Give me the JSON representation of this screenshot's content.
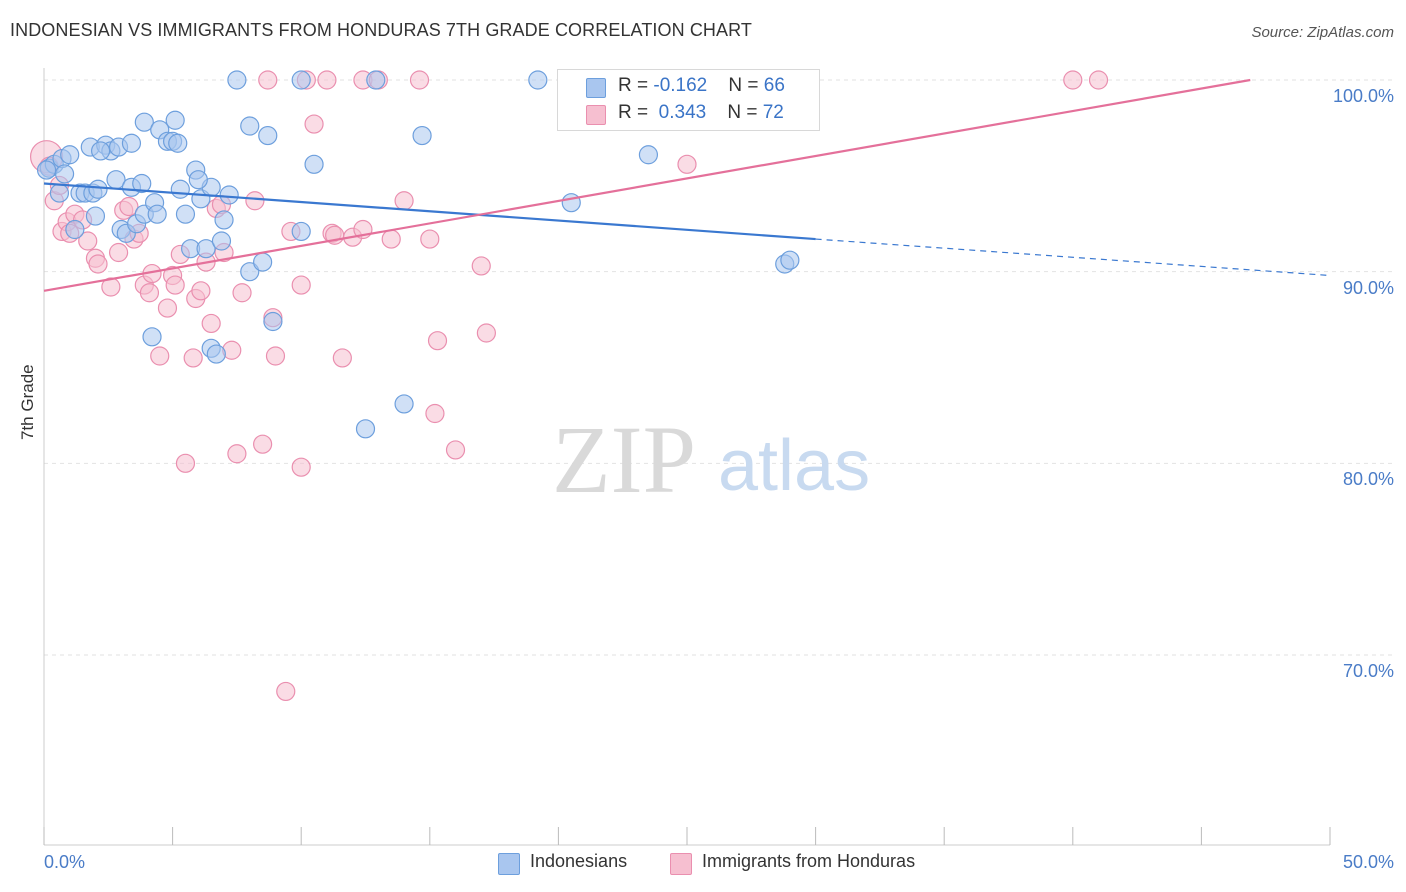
{
  "title": "INDONESIAN VS IMMIGRANTS FROM HONDURAS 7TH GRADE CORRELATION CHART",
  "source": "Source: ZipAtlas.com",
  "watermark": {
    "zip": "ZIP",
    "atlas": "atlas"
  },
  "legend_top": {
    "rows": [
      {
        "r_label": "R = ",
        "r_value": "-0.162",
        "n_label": "N = ",
        "n_value": "66"
      },
      {
        "r_label": "R = ",
        "r_value": "0.343",
        "n_label": "N = ",
        "n_value": "72"
      }
    ]
  },
  "legend_bottom": {
    "items": [
      "Indonesians",
      "Immigrants from Honduras"
    ]
  },
  "colors": {
    "blue_fill": "#a9c6ef",
    "blue_stroke": "#6d9fdd",
    "blue_line": "#3a78d0",
    "pink_fill": "#f6bfd0",
    "pink_stroke": "#ea8faf",
    "pink_line": "#e4709a",
    "tick_text": "#4a7cc7",
    "grid": "#e2e2e2"
  },
  "chart_data": {
    "type": "scatter",
    "title": "INDONESIAN VS IMMIGRANTS FROM HONDURAS 7TH GRADE CORRELATION CHART",
    "xlabel": "",
    "ylabel": "7th Grade",
    "xlim": [
      0,
      50
    ],
    "ylim": [
      60,
      100.5
    ],
    "x_tick_labels": [
      "0.0%",
      "50.0%"
    ],
    "y_ticks": [
      100,
      90,
      80,
      70
    ],
    "y_tick_labels": [
      "100.0%",
      "90.0%",
      "80.0%",
      "70.0%"
    ],
    "grid": true,
    "legend_position": "bottom",
    "series": [
      {
        "name": "Indonesians",
        "r": -0.162,
        "n": 66,
        "trend": {
          "x0": 0.0,
          "y0": 94.6,
          "x1": 30.0,
          "y1": 91.7,
          "dash_to_x": 50.0,
          "dash_to_y": 89.8
        },
        "points": [
          [
            0.2,
            95.4
          ],
          [
            0.4,
            95.6
          ],
          [
            0.6,
            94.1
          ],
          [
            0.7,
            95.9
          ],
          [
            0.8,
            95.1
          ],
          [
            1.0,
            96.1
          ],
          [
            1.2,
            92.2
          ],
          [
            1.4,
            94.1
          ],
          [
            1.6,
            94.1
          ],
          [
            1.8,
            96.5
          ],
          [
            1.9,
            94.1
          ],
          [
            2.0,
            92.9
          ],
          [
            2.1,
            94.3
          ],
          [
            2.4,
            96.6
          ],
          [
            2.6,
            96.3
          ],
          [
            2.8,
            94.8
          ],
          [
            2.9,
            96.5
          ],
          [
            3.0,
            92.2
          ],
          [
            3.2,
            92.0
          ],
          [
            3.4,
            94.4
          ],
          [
            3.4,
            96.7
          ],
          [
            3.6,
            92.5
          ],
          [
            3.8,
            94.6
          ],
          [
            3.9,
            97.8
          ],
          [
            3.9,
            93.0
          ],
          [
            4.2,
            86.6
          ],
          [
            4.3,
            93.6
          ],
          [
            4.4,
            93.0
          ],
          [
            4.5,
            97.4
          ],
          [
            4.8,
            96.8
          ],
          [
            5.0,
            96.8
          ],
          [
            5.1,
            97.9
          ],
          [
            5.2,
            96.7
          ],
          [
            5.3,
            94.3
          ],
          [
            5.5,
            93.0
          ],
          [
            5.7,
            91.2
          ],
          [
            5.9,
            95.3
          ],
          [
            6.1,
            93.8
          ],
          [
            6.3,
            91.2
          ],
          [
            6.5,
            86.0
          ],
          [
            6.5,
            94.4
          ],
          [
            6.7,
            85.7
          ],
          [
            6.9,
            91.6
          ],
          [
            7.0,
            92.7
          ],
          [
            7.2,
            94.0
          ],
          [
            7.5,
            100.0
          ],
          [
            8.0,
            97.6
          ],
          [
            8.0,
            90.0
          ],
          [
            8.5,
            90.5
          ],
          [
            8.7,
            97.1
          ],
          [
            8.9,
            87.4
          ],
          [
            10.0,
            100.0
          ],
          [
            10.0,
            92.1
          ],
          [
            10.5,
            95.6
          ],
          [
            12.5,
            81.8
          ],
          [
            12.9,
            100.0
          ],
          [
            14.0,
            83.1
          ],
          [
            14.7,
            97.1
          ],
          [
            19.2,
            100.0
          ],
          [
            20.5,
            93.6
          ],
          [
            23.5,
            96.1
          ],
          [
            28.8,
            90.4
          ],
          [
            29.0,
            90.6
          ],
          [
            0.1,
            95.3
          ],
          [
            2.2,
            96.3
          ],
          [
            6.0,
            94.8
          ]
        ]
      },
      {
        "name": "Immigrants from Honduras",
        "r": 0.343,
        "n": 72,
        "trend": {
          "x0": 0.0,
          "y0": 89.0,
          "x1": 46.9,
          "y1": 100.0
        },
        "points": [
          [
            0.1,
            96.0
          ],
          [
            0.2,
            95.5
          ],
          [
            0.4,
            93.7
          ],
          [
            0.6,
            94.5
          ],
          [
            0.7,
            92.1
          ],
          [
            0.9,
            92.6
          ],
          [
            1.0,
            92.0
          ],
          [
            1.2,
            93.0
          ],
          [
            1.5,
            92.7
          ],
          [
            1.7,
            91.6
          ],
          [
            2.0,
            90.7
          ],
          [
            2.1,
            90.4
          ],
          [
            2.6,
            89.2
          ],
          [
            2.9,
            91.0
          ],
          [
            3.1,
            93.2
          ],
          [
            3.3,
            93.4
          ],
          [
            3.5,
            91.7
          ],
          [
            3.7,
            92.0
          ],
          [
            3.9,
            89.3
          ],
          [
            4.1,
            88.9
          ],
          [
            4.2,
            89.9
          ],
          [
            4.5,
            85.6
          ],
          [
            4.8,
            88.1
          ],
          [
            5.0,
            89.8
          ],
          [
            5.1,
            89.3
          ],
          [
            5.3,
            90.9
          ],
          [
            5.5,
            80.0
          ],
          [
            5.8,
            85.5
          ],
          [
            5.9,
            88.6
          ],
          [
            6.1,
            89.0
          ],
          [
            6.3,
            90.5
          ],
          [
            6.5,
            87.3
          ],
          [
            6.7,
            93.3
          ],
          [
            6.9,
            93.5
          ],
          [
            7.0,
            91.0
          ],
          [
            7.3,
            85.9
          ],
          [
            7.5,
            80.5
          ],
          [
            7.7,
            88.9
          ],
          [
            8.2,
            93.7
          ],
          [
            8.5,
            81.0
          ],
          [
            8.7,
            100.0
          ],
          [
            8.9,
            87.6
          ],
          [
            9.0,
            85.6
          ],
          [
            9.4,
            68.1
          ],
          [
            9.6,
            92.1
          ],
          [
            10.0,
            79.8
          ],
          [
            10.0,
            89.3
          ],
          [
            10.2,
            100.0
          ],
          [
            10.5,
            97.7
          ],
          [
            11.0,
            100.0
          ],
          [
            11.2,
            92.0
          ],
          [
            11.3,
            91.9
          ],
          [
            11.6,
            85.5
          ],
          [
            12.0,
            91.8
          ],
          [
            12.4,
            92.2
          ],
          [
            12.4,
            100.0
          ],
          [
            13.0,
            100.0
          ],
          [
            13.5,
            91.7
          ],
          [
            14.0,
            93.7
          ],
          [
            14.6,
            100.0
          ],
          [
            15.0,
            91.7
          ],
          [
            15.2,
            82.6
          ],
          [
            15.3,
            86.4
          ],
          [
            16.0,
            80.7
          ],
          [
            17.0,
            90.3
          ],
          [
            17.2,
            86.8
          ],
          [
            21.2,
            100.0
          ],
          [
            24.0,
            100.0
          ],
          [
            25.0,
            95.6
          ],
          [
            28.0,
            100.0
          ],
          [
            40.0,
            100.0
          ],
          [
            41.0,
            100.0
          ]
        ]
      }
    ]
  }
}
